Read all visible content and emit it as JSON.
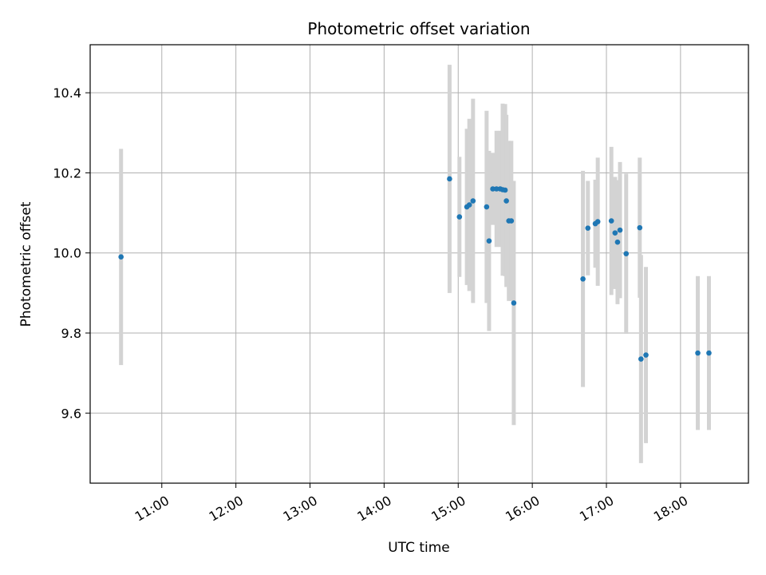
{
  "chart_data": {
    "type": "scatter",
    "title": "Photometric offset variation",
    "xlabel": "UTC time",
    "ylabel": "Photometric offset",
    "grid": true,
    "x_ticks": [
      "11:00",
      "12:00",
      "13:00",
      "14:00",
      "15:00",
      "16:00",
      "17:00",
      "18:00"
    ],
    "y_ticks": [
      "9.6",
      "9.8",
      "10.0",
      "10.2",
      "10.4"
    ],
    "xlim": [
      "10:02",
      "18:55"
    ],
    "ylim": [
      9.425,
      10.52
    ],
    "colors": {
      "point": "#1f77b4",
      "errorbar": "#d3d3d3",
      "grid": "#b0b0b0"
    },
    "points": [
      {
        "x": "10:27",
        "y": 9.99,
        "yerr": 0.27
      },
      {
        "x": "14:53",
        "y": 10.185,
        "yerr": 0.285
      },
      {
        "x": "15:01",
        "y": 10.09,
        "yerr": 0.15
      },
      {
        "x": "15:07",
        "y": 10.115,
        "yerr": 0.195
      },
      {
        "x": "15:09",
        "y": 10.12,
        "yerr": 0.215
      },
      {
        "x": "15:12",
        "y": 10.13,
        "yerr": 0.255
      },
      {
        "x": "15:23",
        "y": 10.115,
        "yerr": 0.24
      },
      {
        "x": "15:25",
        "y": 10.03,
        "yerr": 0.225
      },
      {
        "x": "15:28",
        "y": 10.16,
        "yerr": 0.09
      },
      {
        "x": "15:31",
        "y": 10.16,
        "yerr": 0.145
      },
      {
        "x": "15:34",
        "y": 10.16,
        "yerr": 0.145
      },
      {
        "x": "15:36",
        "y": 10.158,
        "yerr": 0.215
      },
      {
        "x": "15:38",
        "y": 10.157,
        "yerr": 0.215
      },
      {
        "x": "15:39",
        "y": 10.13,
        "yerr": 0.215
      },
      {
        "x": "15:41",
        "y": 10.08,
        "yerr": 0.2
      },
      {
        "x": "15:43",
        "y": 10.08,
        "yerr": 0.2
      },
      {
        "x": "15:45",
        "y": 9.875,
        "yerr": 0.305
      },
      {
        "x": "16:41",
        "y": 9.935,
        "yerr": 0.27
      },
      {
        "x": "16:45",
        "y": 10.062,
        "yerr": 0.118
      },
      {
        "x": "16:51",
        "y": 10.073,
        "yerr": 0.11
      },
      {
        "x": "16:53",
        "y": 10.078,
        "yerr": 0.16
      },
      {
        "x": "17:04",
        "y": 10.08,
        "yerr": 0.185
      },
      {
        "x": "17:07",
        "y": 10.05,
        "yerr": 0.14
      },
      {
        "x": "17:09",
        "y": 10.027,
        "yerr": 0.155
      },
      {
        "x": "17:11",
        "y": 10.057,
        "yerr": 0.17
      },
      {
        "x": "17:16",
        "y": 9.998,
        "yerr": 0.2
      },
      {
        "x": "17:27",
        "y": 10.063,
        "yerr": 0.175
      },
      {
        "x": "17:28",
        "y": 9.735,
        "yerr": 0.26
      },
      {
        "x": "17:32",
        "y": 9.745,
        "yerr": 0.22
      },
      {
        "x": "18:14",
        "y": 9.75,
        "yerr": 0.192
      },
      {
        "x": "18:23",
        "y": 9.75,
        "yerr": 0.192
      }
    ]
  }
}
